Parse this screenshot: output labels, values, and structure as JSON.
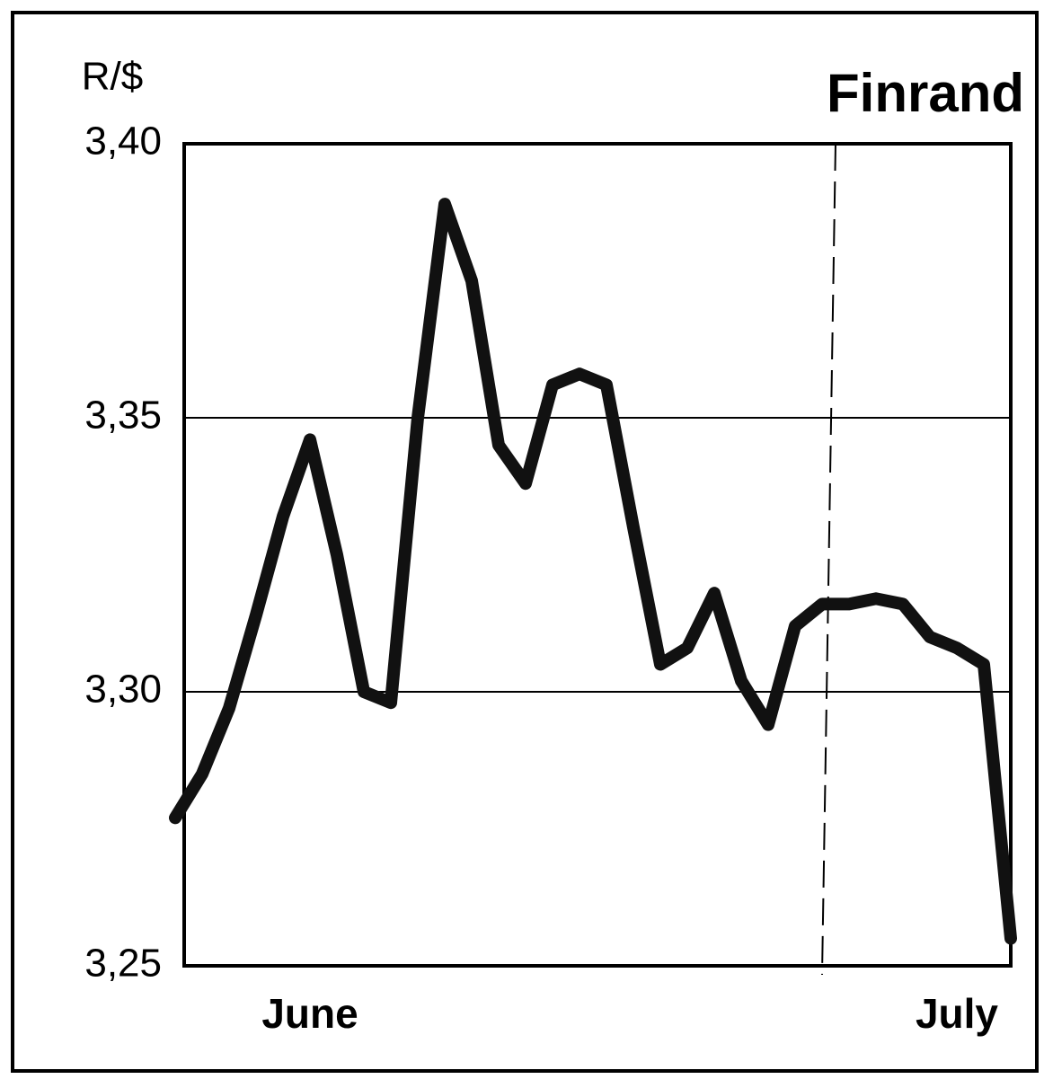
{
  "chart_data": {
    "type": "line",
    "title": "Finrand",
    "y_label": "R/$",
    "categories": [
      null,
      null,
      null,
      null,
      null,
      "June",
      null,
      null,
      null,
      null,
      null,
      null,
      null,
      null,
      null,
      null,
      null,
      null,
      null,
      null,
      null,
      null,
      null,
      null,
      null,
      null,
      null,
      null,
      null,
      "July",
      null,
      null
    ],
    "series": [
      {
        "name": "Finrand",
        "color": "#111111",
        "values": [
          3.277,
          3.285,
          3.297,
          3.314,
          3.332,
          3.346,
          3.325,
          3.3,
          3.298,
          3.35,
          3.389,
          3.375,
          3.345,
          3.338,
          3.356,
          3.358,
          3.356,
          3.33,
          3.305,
          3.308,
          3.318,
          3.302,
          3.294,
          3.312,
          3.316,
          3.316,
          3.317,
          3.316,
          3.31,
          3.308,
          3.305,
          3.255
        ]
      }
    ],
    "ylim": [
      3.25,
      3.4
    ],
    "yticks": [
      {
        "value": 3.25,
        "label": "3,25"
      },
      {
        "value": 3.3,
        "label": "3,30"
      },
      {
        "value": 3.35,
        "label": "3,35"
      },
      {
        "value": 3.4,
        "label": "3,40"
      }
    ],
    "grid": true
  }
}
